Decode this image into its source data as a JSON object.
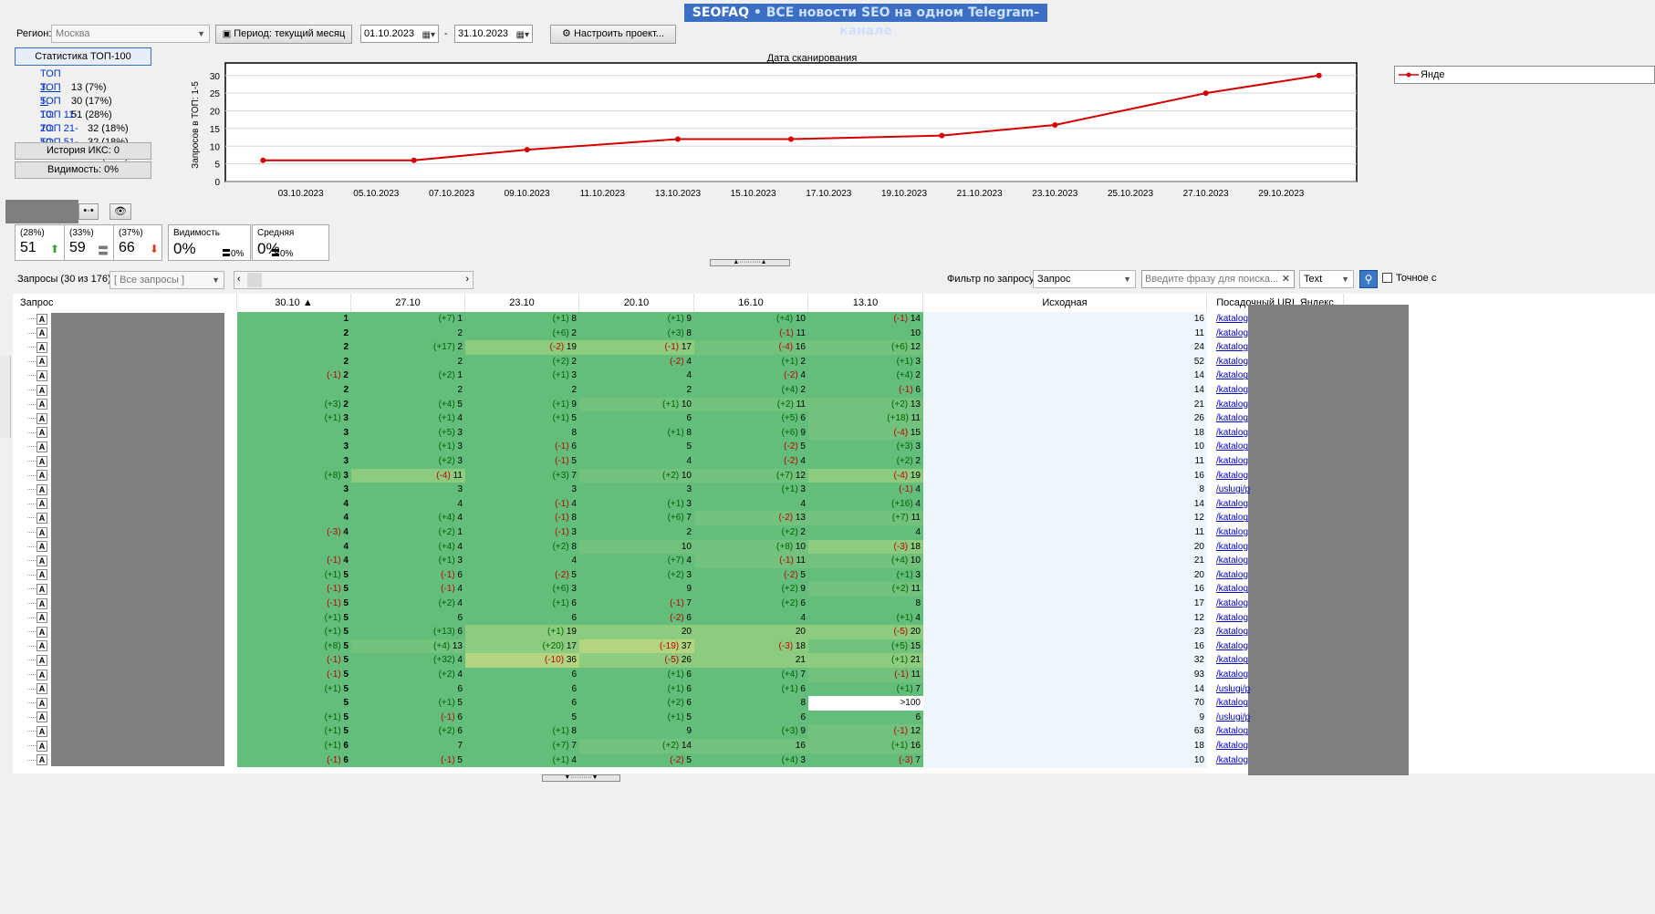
{
  "banner": {
    "part1": "SEOFAQ",
    "part2": " • ВСЕ новости SEO на одном Telegram-канале"
  },
  "toolbar": {
    "region_label": "Регион:",
    "region_value": "Москва",
    "period_button": "Период: текущий месяц",
    "date_from": "01.10.2023",
    "date_sep": "-",
    "date_to": "31.10.2023",
    "configure_button": "Настроить проект..."
  },
  "stats": {
    "top100_button": "Статистика ТОП-100",
    "items": [
      {
        "name": "ТОП 3:",
        "value": "13 (7%)"
      },
      {
        "name": "ТОП 5:",
        "value": "30 (17%)"
      },
      {
        "name": "ТОП 10:",
        "value": "51 (28%)"
      },
      {
        "name": "ТОП 11-20:",
        "value": "32 (18%)"
      },
      {
        "name": "ТОП 21-50:",
        "value": "32 (18%)"
      },
      {
        "name": "ТОП 51-100:",
        "value": "29 (16%)"
      }
    ],
    "iks_button": "История ИКС: 0",
    "visibility_button": "Видимость: 0%"
  },
  "chart_data": {
    "type": "line",
    "title": "Дата сканирования",
    "ylabel": "Запросов в ТОП: 1-5",
    "ylim": [
      0,
      32
    ],
    "yticks": [
      0,
      5,
      10,
      15,
      20,
      25,
      30
    ],
    "xticks": [
      "03.10.2023",
      "05.10.2023",
      "07.10.2023",
      "09.10.2023",
      "11.10.2023",
      "13.10.2023",
      "15.10.2023",
      "17.10.2023",
      "19.10.2023",
      "21.10.2023",
      "23.10.2023",
      "25.10.2023",
      "27.10.2023",
      "29.10.2023"
    ],
    "series": [
      {
        "name": "Янде",
        "color": "#d40000",
        "x": [
          "02.10.2023",
          "06.10.2023",
          "09.10.2023",
          "13.10.2023",
          "16.10.2023",
          "20.10.2023",
          "23.10.2023",
          "27.10.2023",
          "30.10.2023"
        ],
        "values": [
          6,
          6,
          9,
          12,
          12,
          13,
          16,
          25,
          30
        ]
      }
    ],
    "legend_position": "right",
    "grid": true
  },
  "summary": [
    {
      "pct": "(28%)",
      "value": "51",
      "indicator": "up"
    },
    {
      "pct": "(33%)",
      "value": "59",
      "indicator": "eq"
    },
    {
      "pct": "(37%)",
      "value": "66",
      "indicator": "down"
    }
  ],
  "visibility_box": {
    "label": "Видимость",
    "value": "0%",
    "small": "0%"
  },
  "average_box": {
    "label": "Средняя",
    "value": "0%",
    "small": "0%"
  },
  "queries_bar": {
    "count_label": "Запросы (30 из 176)",
    "group_select": "[ Все запросы ]",
    "filter_label": "Фильтр по запросу:",
    "filter_field": "Запрос",
    "search_placeholder": "Введите фразу для поиска...",
    "type_select": "Text",
    "exact_label": "Точное с"
  },
  "table": {
    "headers": [
      "Запрос",
      "30.10",
      "27.10",
      "23.10",
      "20.10",
      "16.10",
      "13.10",
      "Исходная",
      "Посадочный URL Яндекс"
    ],
    "rows": [
      {
        "c": [
          "1",
          "",
          "(+7)",
          "1",
          "(+1)",
          "8",
          "(+1)",
          "9",
          "(+4)",
          "10",
          "(-1)",
          "14"
        ],
        "src": "16",
        "url": "/katalog",
        "bg": [
          "g",
          "g",
          "g",
          "g",
          "g",
          "g"
        ]
      },
      {
        "c": [
          "2",
          "",
          "",
          "2",
          "(+6)",
          "2",
          "(+3)",
          "8",
          "(-1)",
          "11",
          "",
          "10"
        ],
        "src": "11",
        "url": "/katalog",
        "bg": [
          "g",
          "g",
          "g",
          "g",
          "g",
          "g"
        ]
      },
      {
        "c": [
          "2",
          "",
          "(+17)",
          "2",
          "(-2)",
          "19",
          "(-1)",
          "17",
          "(-4)",
          "16",
          "(+6)",
          "12"
        ],
        "src": "24",
        "url": "/katalog",
        "bg": [
          "g",
          "g",
          "g3",
          "g3",
          "g2",
          "g2"
        ]
      },
      {
        "c": [
          "2",
          "",
          "",
          "2",
          "(+2)",
          "2",
          "(-2)",
          "4",
          "(+1)",
          "2",
          "(+1)",
          "3"
        ],
        "src": "52",
        "url": "/katalog",
        "bg": [
          "g",
          "g",
          "g",
          "g",
          "g",
          "g"
        ]
      },
      {
        "c": [
          "2",
          "(-1)",
          "(+2)",
          "1",
          "(+1)",
          "3",
          "",
          "4",
          "(-2)",
          "4",
          "(+4)",
          "2"
        ],
        "src": "14",
        "url": "/katalog",
        "bg": [
          "g",
          "g",
          "g",
          "g",
          "g",
          "g"
        ]
      },
      {
        "c": [
          "2",
          "",
          "",
          "2",
          "",
          "2",
          "",
          "2",
          "(+4)",
          "2",
          "(-1)",
          "6"
        ],
        "src": "14",
        "url": "/katalog",
        "bg": [
          "g",
          "g",
          "g",
          "g",
          "g",
          "g"
        ]
      },
      {
        "c": [
          "2",
          "(+3)",
          "(+4)",
          "5",
          "(+1)",
          "9",
          "(+1)",
          "10",
          "(+2)",
          "11",
          "(+2)",
          "13"
        ],
        "src": "21",
        "url": "/katalog",
        "bg": [
          "g",
          "g",
          "g",
          "g2",
          "g2",
          "g2"
        ]
      },
      {
        "c": [
          "3",
          "(+1)",
          "(+1)",
          "4",
          "(+1)",
          "5",
          "",
          "6",
          "(+5)",
          "6",
          "(+18)",
          "11"
        ],
        "src": "26",
        "url": "/katalog",
        "bg": [
          "g",
          "g",
          "g",
          "g",
          "g",
          "g2"
        ]
      },
      {
        "c": [
          "3",
          "",
          "(+5)",
          "3",
          "",
          "8",
          "(+1)",
          "8",
          "(+6)",
          "9",
          "(-4)",
          "15"
        ],
        "src": "18",
        "url": "/katalog",
        "bg": [
          "g",
          "g",
          "g",
          "g",
          "g",
          "g2"
        ]
      },
      {
        "c": [
          "3",
          "",
          "(+1)",
          "3",
          "(-1)",
          "6",
          "",
          "5",
          "(-2)",
          "5",
          "(+3)",
          "3"
        ],
        "src": "10",
        "url": "/katalog",
        "bg": [
          "g",
          "g",
          "g",
          "g",
          "g",
          "g"
        ]
      },
      {
        "c": [
          "3",
          "",
          "(+2)",
          "3",
          "(-1)",
          "5",
          "",
          "4",
          "(-2)",
          "4",
          "(+2)",
          "2"
        ],
        "src": "11",
        "url": "/katalog",
        "bg": [
          "g",
          "g",
          "g",
          "g",
          "g",
          "g"
        ]
      },
      {
        "c": [
          "3",
          "(+8)",
          "(-4)",
          "11",
          "(+3)",
          "7",
          "(+2)",
          "10",
          "(+7)",
          "12",
          "(-4)",
          "19"
        ],
        "src": "16",
        "url": "/katalog",
        "bg": [
          "g",
          "g3",
          "g",
          "g2",
          "g2",
          "g3"
        ]
      },
      {
        "c": [
          "3",
          "",
          "",
          "3",
          "",
          "3",
          "",
          "3",
          "(+1)",
          "3",
          "(-1)",
          "4"
        ],
        "src": "8",
        "url": "/uslugi/p",
        "bg": [
          "g",
          "g",
          "g",
          "g",
          "g",
          "g"
        ]
      },
      {
        "c": [
          "4",
          "",
          "",
          "4",
          "(-1)",
          "4",
          "(+1)",
          "3",
          "",
          "4",
          "(+16)",
          "4"
        ],
        "src": "14",
        "url": "/katalog",
        "bg": [
          "g",
          "g",
          "g",
          "g",
          "g",
          "g"
        ]
      },
      {
        "c": [
          "4",
          "",
          "(+4)",
          "4",
          "(-1)",
          "8",
          "(+6)",
          "7",
          "(-2)",
          "13",
          "(+7)",
          "11"
        ],
        "src": "12",
        "url": "/katalog",
        "bg": [
          "g",
          "g",
          "g",
          "g",
          "g2",
          "g2"
        ]
      },
      {
        "c": [
          "4",
          "(-3)",
          "(+2)",
          "1",
          "(-1)",
          "3",
          "",
          "2",
          "(+2)",
          "2",
          "",
          "4"
        ],
        "src": "11",
        "url": "/katalog",
        "bg": [
          "g",
          "g",
          "g",
          "g",
          "g",
          "g"
        ]
      },
      {
        "c": [
          "4",
          "",
          "(+4)",
          "4",
          "(+2)",
          "8",
          "",
          "10",
          "(+8)",
          "10",
          "(-3)",
          "18"
        ],
        "src": "20",
        "url": "/katalog",
        "bg": [
          "g",
          "g",
          "g",
          "g2",
          "g2",
          "g3"
        ]
      },
      {
        "c": [
          "4",
          "(-1)",
          "(+1)",
          "3",
          "",
          "4",
          "(+7)",
          "4",
          "(-1)",
          "11",
          "(+4)",
          "10"
        ],
        "src": "21",
        "url": "/katalog",
        "bg": [
          "g",
          "g",
          "g",
          "g",
          "g2",
          "g2"
        ]
      },
      {
        "c": [
          "5",
          "(+1)",
          "(-1)",
          "6",
          "(-2)",
          "5",
          "(+2)",
          "3",
          "(-2)",
          "5",
          "(+1)",
          "3"
        ],
        "src": "20",
        "url": "/katalog",
        "bg": [
          "g",
          "g",
          "g",
          "g",
          "g",
          "g"
        ]
      },
      {
        "c": [
          "5",
          "(-1)",
          "(-1)",
          "4",
          "(+6)",
          "3",
          "",
          "9",
          "(+2)",
          "9",
          "(+2)",
          "11"
        ],
        "src": "16",
        "url": "/katalog",
        "bg": [
          "g",
          "g",
          "g",
          "g",
          "g",
          "g2"
        ]
      },
      {
        "c": [
          "5",
          "(-1)",
          "(+2)",
          "4",
          "(+1)",
          "6",
          "(-1)",
          "7",
          "(+2)",
          "6",
          "",
          "8"
        ],
        "src": "17",
        "url": "/katalog",
        "bg": [
          "g",
          "g",
          "g",
          "g",
          "g",
          "g"
        ]
      },
      {
        "c": [
          "5",
          "(+1)",
          "",
          "6",
          "",
          "6",
          "(-2)",
          "6",
          "",
          "4",
          "(+1)",
          "4"
        ],
        "src": "12",
        "url": "/katalog",
        "bg": [
          "g",
          "g",
          "g",
          "g",
          "g",
          "g"
        ]
      },
      {
        "c": [
          "5",
          "(+1)",
          "(+13)",
          "6",
          "(+1)",
          "19",
          "",
          "20",
          "",
          "20",
          "(-5)",
          "20"
        ],
        "src": "23",
        "url": "/katalog",
        "bg": [
          "g",
          "g",
          "g3",
          "g3",
          "g3",
          "g3"
        ]
      },
      {
        "c": [
          "5",
          "(+8)",
          "(+4)",
          "13",
          "(+20)",
          "17",
          "(-19)",
          "37",
          "(-3)",
          "18",
          "(+5)",
          "15"
        ],
        "src": "16",
        "url": "/katalog",
        "bg": [
          "g",
          "g2",
          "g3",
          "y",
          "g3",
          "g2"
        ]
      },
      {
        "c": [
          "5",
          "(-1)",
          "(+32)",
          "4",
          "(-10)",
          "36",
          "(-5)",
          "26",
          "",
          "21",
          "(+1)",
          "21"
        ],
        "src": "32",
        "url": "/katalog",
        "bg": [
          "g",
          "g",
          "y",
          "g3",
          "g3",
          "g3"
        ]
      },
      {
        "c": [
          "5",
          "(-1)",
          "(+2)",
          "4",
          "",
          "6",
          "(+1)",
          "6",
          "(+4)",
          "7",
          "(-1)",
          "11"
        ],
        "src": "93",
        "url": "/katalog",
        "bg": [
          "g",
          "g",
          "g",
          "g",
          "g",
          "g2"
        ]
      },
      {
        "c": [
          "5",
          "(+1)",
          "",
          "6",
          "",
          "6",
          "(+1)",
          "6",
          "(+1)",
          "6",
          "(+1)",
          "7"
        ],
        "src": "14",
        "url": "/uslugi/p",
        "bg": [
          "g",
          "g",
          "g",
          "g",
          "g",
          "g"
        ]
      },
      {
        "c": [
          "5",
          "",
          "(+1)",
          "5",
          "",
          "6",
          "(+2)",
          "6",
          "",
          "8",
          "",
          ">100"
        ],
        "src": "70",
        "url": "/katalog",
        "bg": [
          "g",
          "g",
          "g",
          "g",
          "g",
          "w"
        ]
      },
      {
        "c": [
          "5",
          "(+1)",
          "(-1)",
          "6",
          "",
          "5",
          "(+1)",
          "5",
          "",
          "6",
          "",
          "6"
        ],
        "src": "9",
        "url": "/uslugi/p",
        "bg": [
          "g",
          "g",
          "g",
          "g",
          "g",
          "g"
        ]
      },
      {
        "c": [
          "5",
          "(+1)",
          "(+2)",
          "6",
          "(+1)",
          "8",
          "",
          "9",
          "(+3)",
          "9",
          "(-1)",
          "12"
        ],
        "src": "63",
        "url": "/katalog",
        "bg": [
          "g",
          "g",
          "g",
          "g",
          "g",
          "g2"
        ]
      },
      {
        "c": [
          "6",
          "(+1)",
          "",
          "7",
          "(+7)",
          "7",
          "(+2)",
          "14",
          "",
          "16",
          "(+1)",
          "16"
        ],
        "src": "18",
        "url": "/katalog",
        "bg": [
          "g",
          "g",
          "g",
          "g2",
          "g2",
          "g2"
        ]
      },
      {
        "c": [
          "6",
          "(-1)",
          "(-1)",
          "5",
          "(+1)",
          "4",
          "(-2)",
          "5",
          "(+4)",
          "3",
          "(-3)",
          "7"
        ],
        "src": "10",
        "url": "/katalog",
        "bg": [
          "g",
          "g",
          "g",
          "g",
          "g",
          "g"
        ]
      }
    ]
  }
}
